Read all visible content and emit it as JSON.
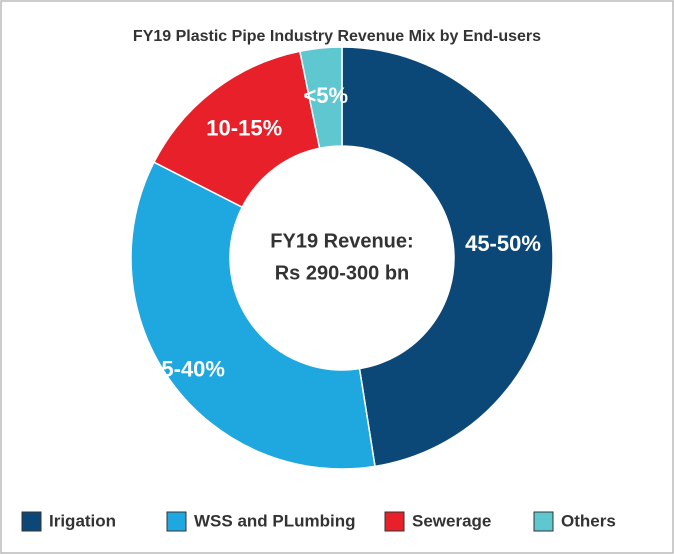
{
  "chart_data": {
    "type": "donut",
    "title": "FY19 Plastic Pipe Industry Revenue Mix by End-users",
    "center_label": [
      "FY19 Revenue:",
      "Rs 290-300 bn"
    ],
    "categories": [
      "Irigation",
      "WSS and PLumbing",
      "Sewerage",
      "Others"
    ],
    "values": [
      47.5,
      35,
      14.3,
      3.2
    ],
    "value_labels": [
      "45-50%",
      "35-40%",
      "10-15%",
      "<5%"
    ],
    "colors": [
      "#0b4878",
      "#1fa7df",
      "#e8202a",
      "#5ec7cf"
    ],
    "legend": "bottom"
  }
}
